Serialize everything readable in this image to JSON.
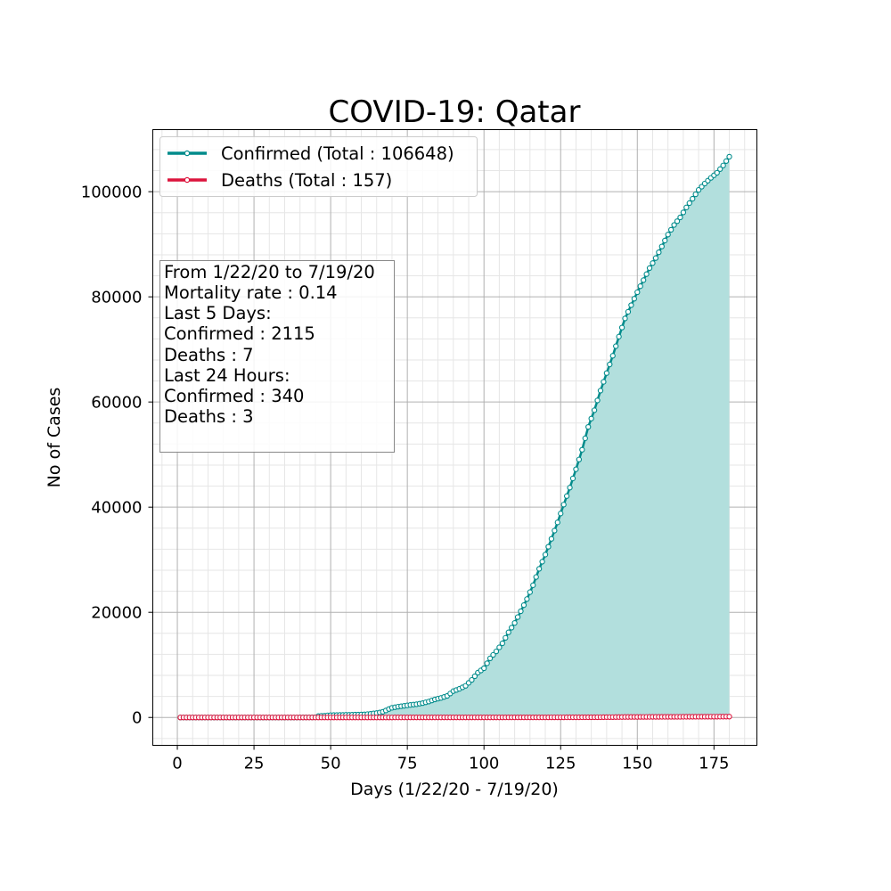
{
  "chart_data": {
    "type": "line",
    "title": "COVID-19: Qatar",
    "xlabel": "Days (1/22/20 - 7/19/20)",
    "ylabel": "No of Cases",
    "xlim": [
      -8,
      189
    ],
    "ylim": [
      -5300,
      111800
    ],
    "xticks": [
      0,
      25,
      50,
      75,
      100,
      125,
      150,
      175
    ],
    "yticks": [
      0,
      20000,
      40000,
      60000,
      80000,
      100000
    ],
    "grid": true,
    "legend_position": "top-left",
    "series": [
      {
        "name": "Confirmed (Total : 106648)",
        "color": "#008b8b",
        "fill": "#b2dfdd",
        "points": [
          [
            1,
            0
          ],
          [
            38,
            0
          ],
          [
            39,
            1
          ],
          [
            40,
            3
          ],
          [
            41,
            7
          ],
          [
            42,
            12
          ],
          [
            43,
            15
          ],
          [
            44,
            18
          ],
          [
            45,
            24
          ],
          [
            46,
            262
          ],
          [
            47,
            320
          ],
          [
            48,
            337
          ],
          [
            49,
            401
          ],
          [
            50,
            439
          ],
          [
            51,
            452
          ],
          [
            52,
            460
          ],
          [
            53,
            470
          ],
          [
            54,
            481
          ],
          [
            55,
            494
          ],
          [
            56,
            501
          ],
          [
            57,
            526
          ],
          [
            58,
            537
          ],
          [
            59,
            549
          ],
          [
            60,
            562
          ],
          [
            61,
            590
          ],
          [
            62,
            634
          ],
          [
            63,
            693
          ],
          [
            64,
            781
          ],
          [
            65,
            835
          ],
          [
            66,
            949
          ],
          [
            67,
            1075
          ],
          [
            68,
            1325
          ],
          [
            69,
            1604
          ],
          [
            70,
            1832
          ],
          [
            72,
            2057
          ],
          [
            74,
            2210
          ],
          [
            76,
            2376
          ],
          [
            78,
            2512
          ],
          [
            80,
            2728
          ],
          [
            82,
            3031
          ],
          [
            84,
            3428
          ],
          [
            86,
            3711
          ],
          [
            88,
            4103
          ],
          [
            90,
            5008
          ],
          [
            92,
            5448
          ],
          [
            94,
            6015
          ],
          [
            96,
            7141
          ],
          [
            98,
            8525
          ],
          [
            100,
            9358
          ],
          [
            102,
            11244
          ],
          [
            104,
            12564
          ],
          [
            106,
            14096
          ],
          [
            108,
            16191
          ],
          [
            110,
            17972
          ],
          [
            112,
            20201
          ],
          [
            114,
            22520
          ],
          [
            116,
            25149
          ],
          [
            118,
            28272
          ],
          [
            120,
            30972
          ],
          [
            122,
            33969
          ],
          [
            124,
            37097
          ],
          [
            126,
            40481
          ],
          [
            128,
            43714
          ],
          [
            130,
            47207
          ],
          [
            132,
            50914
          ],
          [
            134,
            55262
          ],
          [
            136,
            58433
          ],
          [
            138,
            62160
          ],
          [
            140,
            65495
          ],
          [
            142,
            68790
          ],
          [
            144,
            72430
          ],
          [
            146,
            75888
          ],
          [
            148,
            78416
          ],
          [
            150,
            80876
          ],
          [
            152,
            83174
          ],
          [
            154,
            85462
          ],
          [
            156,
            87369
          ],
          [
            158,
            89579
          ],
          [
            160,
            91838
          ],
          [
            162,
            93663
          ],
          [
            164,
            95106
          ],
          [
            166,
            97003
          ],
          [
            168,
            98653
          ],
          [
            170,
            100345
          ],
          [
            172,
            101553
          ],
          [
            174,
            102630
          ],
          [
            176,
            103598
          ],
          [
            178,
            104983
          ],
          [
            180,
            106648
          ]
        ]
      },
      {
        "name": "Deaths (Total : 157)",
        "color": "#dc143c",
        "fill": "",
        "points": [
          [
            1,
            0
          ],
          [
            70,
            0
          ],
          [
            72,
            4
          ],
          [
            74,
            6
          ],
          [
            76,
            7
          ],
          [
            78,
            8
          ],
          [
            80,
            9
          ],
          [
            82,
            10
          ],
          [
            84,
            10
          ],
          [
            86,
            10
          ],
          [
            88,
            10
          ],
          [
            90,
            10
          ],
          [
            92,
            10
          ],
          [
            94,
            10
          ],
          [
            96,
            10
          ],
          [
            98,
            10
          ],
          [
            100,
            10
          ],
          [
            102,
            10
          ],
          [
            104,
            10
          ],
          [
            106,
            10
          ],
          [
            108,
            12
          ],
          [
            110,
            12
          ],
          [
            112,
            14
          ],
          [
            114,
            15
          ],
          [
            116,
            15
          ],
          [
            118,
            15
          ],
          [
            120,
            15
          ],
          [
            122,
            19
          ],
          [
            124,
            19
          ],
          [
            126,
            23
          ],
          [
            128,
            28
          ],
          [
            130,
            30
          ],
          [
            132,
            33
          ],
          [
            134,
            36
          ],
          [
            136,
            39
          ],
          [
            138,
            43
          ],
          [
            140,
            59
          ],
          [
            142,
            66
          ],
          [
            144,
            76
          ],
          [
            146,
            89
          ],
          [
            148,
            97
          ],
          [
            150,
            99
          ],
          [
            152,
            104
          ],
          [
            154,
            110
          ],
          [
            156,
            113
          ],
          [
            158,
            118
          ],
          [
            160,
            122
          ],
          [
            162,
            125
          ],
          [
            164,
            128
          ],
          [
            166,
            133
          ],
          [
            168,
            137
          ],
          [
            170,
            140
          ],
          [
            172,
            144
          ],
          [
            174,
            146
          ],
          [
            176,
            149
          ],
          [
            178,
            154
          ],
          [
            180,
            157
          ]
        ]
      }
    ],
    "info_box": {
      "lines": [
        "From 1/22/20 to 7/19/20",
        "Mortality rate : 0.14",
        "Last 5 Days:",
        "Confirmed : 2115",
        "Deaths : 7",
        "Last 24 Hours:",
        "Confirmed : 340",
        "Deaths : 3"
      ]
    }
  }
}
